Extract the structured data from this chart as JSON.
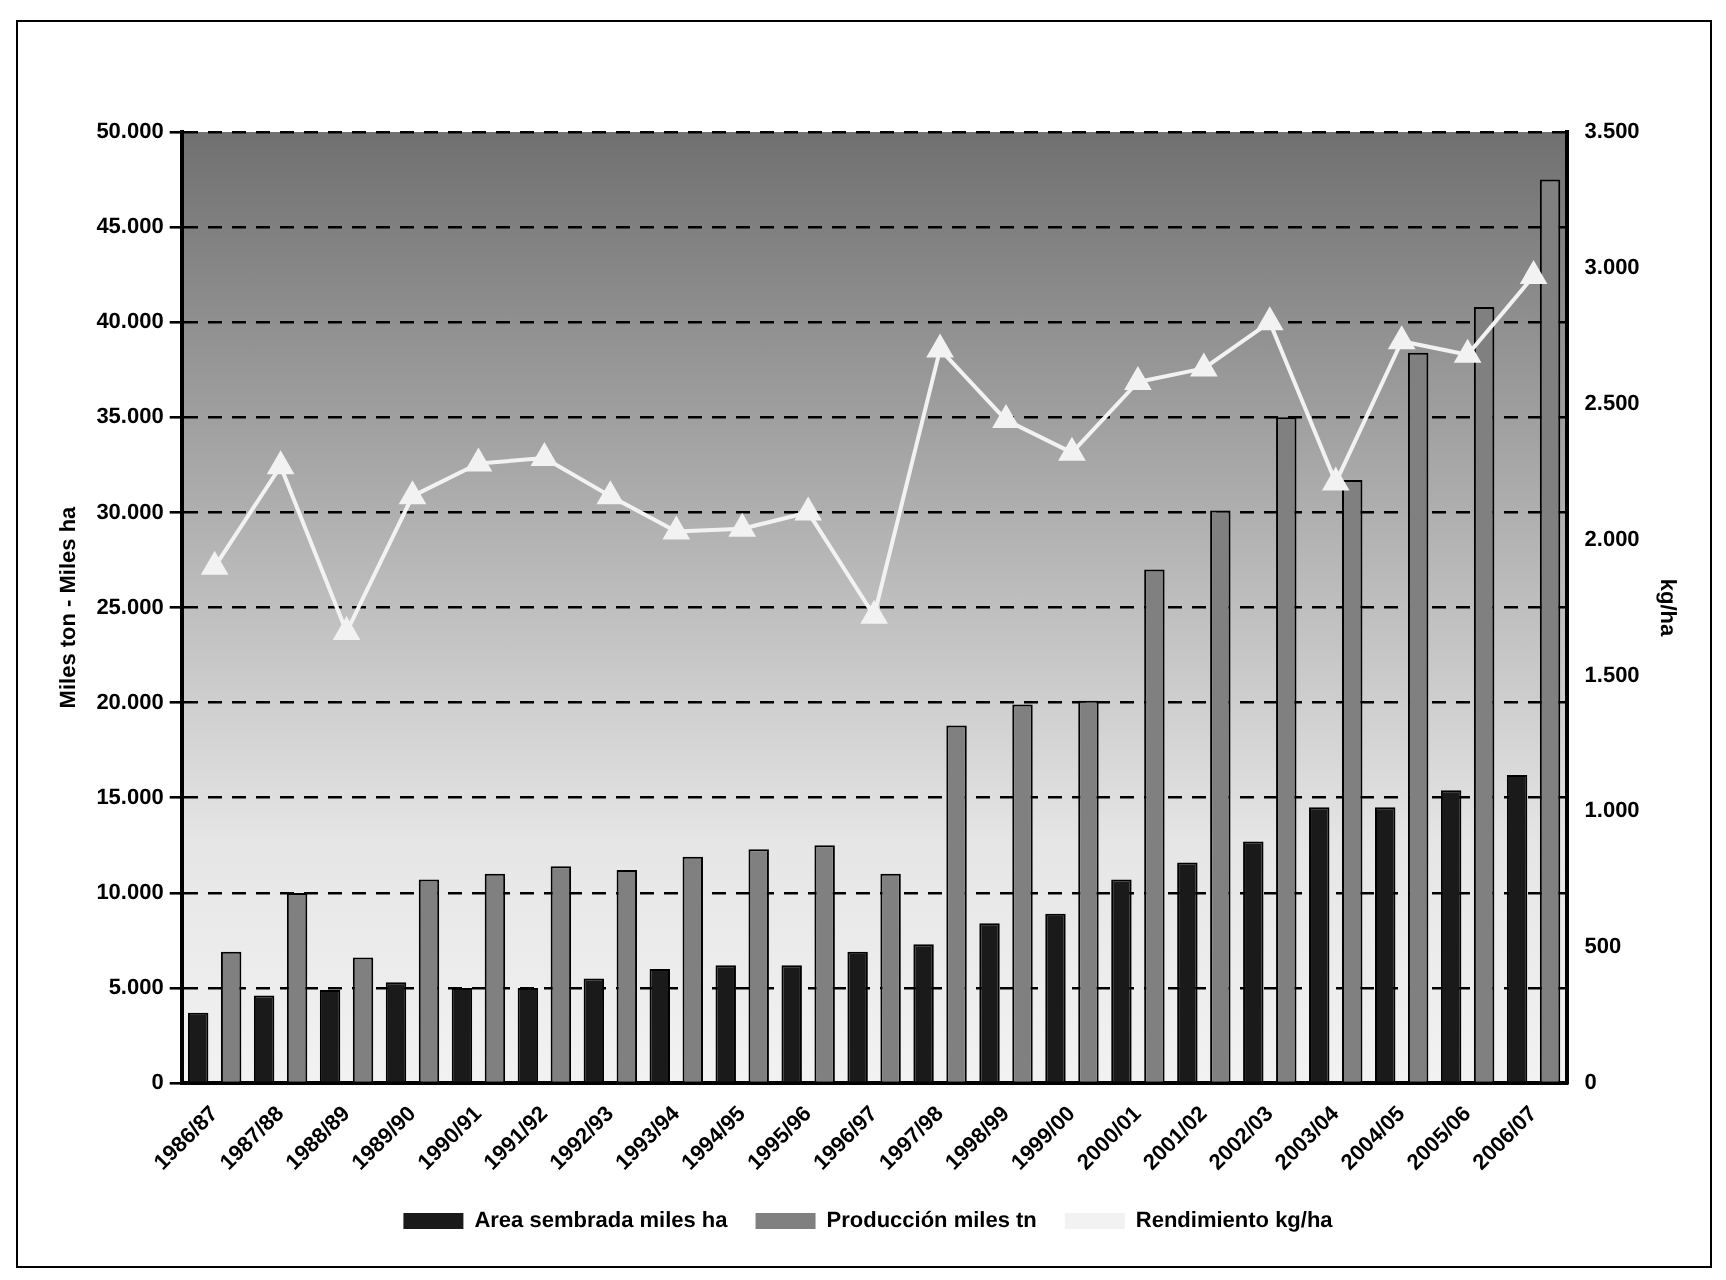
{
  "chart_data": {
    "type": "bar",
    "ylabel": "Miles ton - Miles ha",
    "y2label": "kg/ha",
    "categories": [
      "1986/87",
      "1987/88",
      "1988/89",
      "1989/90",
      "1990/91",
      "1991/92",
      "1992/93",
      "1993/94",
      "1994/95",
      "1995/96",
      "1996/97",
      "1997/98",
      "1998/99",
      "1999/00",
      "2000/01",
      "2001/02",
      "2002/03",
      "2003/04",
      "2004/05",
      "2005/06",
      "2006/07"
    ],
    "series": [
      {
        "name": "Area sembrada miles ha",
        "color": "#1a1a1a",
        "values": [
          3700,
          4600,
          4900,
          5300,
          5000,
          5000,
          5500,
          6000,
          6200,
          6200,
          6900,
          7300,
          8400,
          8900,
          10700,
          11600,
          12700,
          14500,
          14500,
          15400,
          16200
        ]
      },
      {
        "name": "Producción miles tn",
        "color": "#808080",
        "values": [
          6900,
          10000,
          6600,
          10700,
          11000,
          11400,
          11200,
          11900,
          12300,
          12500,
          11000,
          18800,
          19900,
          20100,
          27000,
          30100,
          35000,
          31700,
          38400,
          40800,
          47500
        ]
      },
      {
        "name": "Rendimiento kg/ha",
        "type": "line",
        "axis": "y2",
        "color": "#f2f2f2",
        "marker": "triangle",
        "values": [
          1900,
          2270,
          1660,
          2160,
          2280,
          2300,
          2160,
          2030,
          2040,
          2100,
          1720,
          2700,
          2440,
          2320,
          2580,
          2630,
          2800,
          2210,
          2730,
          2680,
          2970
        ]
      }
    ],
    "ylim": [
      0,
      50000
    ],
    "yticks": [
      0,
      {
        "value": 5000,
        "label": "5.000"
      },
      {
        "value": 10000,
        "label": "10.000"
      },
      {
        "value": 15000,
        "label": "15.000"
      },
      {
        "value": 20000,
        "label": "20.000"
      },
      {
        "value": 25000,
        "label": "25.000"
      },
      {
        "value": 30000,
        "label": "30.000"
      },
      {
        "value": 35000,
        "label": "35.000"
      },
      {
        "value": 40000,
        "label": "40.000"
      },
      {
        "value": 45000,
        "label": "45.000"
      },
      {
        "value": 50000,
        "label": "50.000"
      }
    ],
    "y2lim": [
      0,
      3500
    ],
    "y2ticks": [
      0,
      500,
      {
        "value": 1000,
        "label": "1.000"
      },
      {
        "value": 1500,
        "label": "1.500"
      },
      {
        "value": 2000,
        "label": "2.000"
      },
      {
        "value": 2500,
        "label": "2.500"
      },
      {
        "value": 3000,
        "label": "3.000"
      },
      {
        "value": 3500,
        "label": "3.500"
      }
    ],
    "grid": "y",
    "legend": "bottom"
  }
}
